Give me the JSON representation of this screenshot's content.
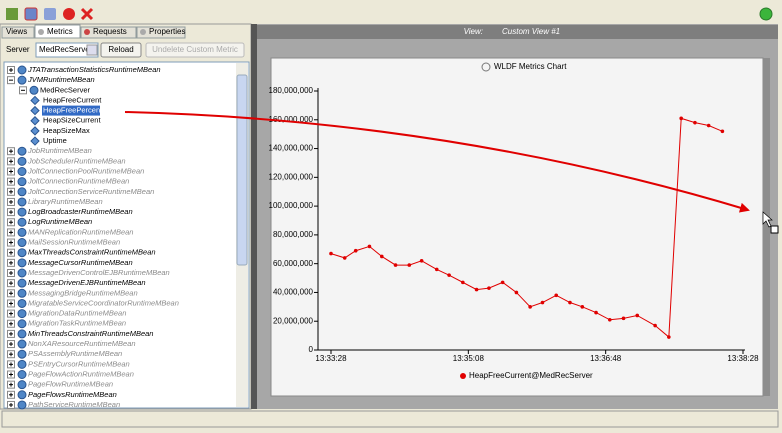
{
  "toolbar": {
    "status": "running"
  },
  "left_panel": {
    "tabs": [
      {
        "label": "Views"
      },
      {
        "label": "Metrics",
        "selected": true
      },
      {
        "label": "Requests"
      },
      {
        "label": "Properties"
      }
    ],
    "server_label": "Server",
    "server_value": "MedRecServer",
    "reload_button": "Reload",
    "undelete_button": "Undelete Custom Metric",
    "tree": [
      {
        "label": "JTATransactionStatisticsRuntimeMBean",
        "active": true
      },
      {
        "label": "JVMRuntimeMBean",
        "active": true,
        "children": [
          {
            "label": "MedRecServer",
            "children": [
              {
                "label": "HeapFreeCurrent"
              },
              {
                "label": "HeapFreePercent",
                "selected": true
              },
              {
                "label": "HeapSizeCurrent"
              },
              {
                "label": "HeapSizeMax"
              },
              {
                "label": "Uptime"
              }
            ]
          }
        ]
      },
      {
        "label": "JobRuntimeMBean",
        "active": false
      },
      {
        "label": "JobSchedulerRuntimeMBean",
        "active": false
      },
      {
        "label": "JoltConnectionPoolRuntimeMBean",
        "active": false
      },
      {
        "label": "JoltConnectionRuntimeMBean",
        "active": false
      },
      {
        "label": "JoltConnectionServiceRuntimeMBean",
        "active": false
      },
      {
        "label": "LibraryRuntimeMBean",
        "active": false
      },
      {
        "label": "LogBroadcasterRuntimeMBean",
        "active": true
      },
      {
        "label": "LogRuntimeMBean",
        "active": true
      },
      {
        "label": "MANReplicationRuntimeMBean",
        "active": false
      },
      {
        "label": "MailSessionRuntimeMBean",
        "active": false
      },
      {
        "label": "MaxThreadsConstraintRuntimeMBean",
        "active": true
      },
      {
        "label": "MessageCursorRuntimeMBean",
        "active": true
      },
      {
        "label": "MessageDrivenControlEJBRuntimeMBean",
        "active": false
      },
      {
        "label": "MessageDrivenEJBRuntimeMBean",
        "active": true
      },
      {
        "label": "MessagingBridgeRuntimeMBean",
        "active": false
      },
      {
        "label": "MigratableServiceCoordinatorRuntimeMBean",
        "active": false
      },
      {
        "label": "MigrationDataRuntimeMBean",
        "active": false
      },
      {
        "label": "MigrationTaskRuntimeMBean",
        "active": false
      },
      {
        "label": "MinThreadsConstraintRuntimeMBean",
        "active": true
      },
      {
        "label": "NonXAResourceRuntimeMBean",
        "active": false
      },
      {
        "label": "PSAssemblyRuntimeMBean",
        "active": false
      },
      {
        "label": "PSEntryCursorRuntimeMBean",
        "active": false
      },
      {
        "label": "PageFlowActionRuntimeMBean",
        "active": false
      },
      {
        "label": "PageFlowRuntimeMBean",
        "active": false
      },
      {
        "label": "PageFlowsRuntimeMBean",
        "active": true
      },
      {
        "label": "PathServiceRuntimeMBean",
        "active": false
      }
    ]
  },
  "view_header": {
    "label": "View:",
    "value": "Custom View #1"
  },
  "chart_data": {
    "type": "line",
    "title": "WLDF Metrics Chart",
    "x": [
      "13:33:28",
      "13:33:38",
      "13:33:46",
      "13:33:56",
      "13:34:05",
      "13:34:15",
      "13:34:25",
      "13:34:34",
      "13:34:45",
      "13:34:54",
      "13:35:04",
      "13:35:14",
      "13:35:23",
      "13:35:33",
      "13:35:43",
      "13:35:53",
      "13:36:02",
      "13:36:12",
      "13:36:22",
      "13:36:31",
      "13:36:41",
      "13:36:51",
      "13:37:01",
      "13:37:11",
      "13:37:24",
      "13:37:34",
      "13:37:43",
      "13:37:53",
      "13:38:03",
      "13:38:13"
    ],
    "series": [
      {
        "name": "HeapFreeCurrent@MedRecServer",
        "color": "#e00000",
        "values": [
          67000000,
          64000000,
          69000000,
          72000000,
          65000000,
          59000000,
          59000000,
          62000000,
          56000000,
          52000000,
          47000000,
          42000000,
          43000000,
          47000000,
          40000000,
          30000000,
          33000000,
          38000000,
          33000000,
          30000000,
          26000000,
          21000000,
          22000000,
          24000000,
          17000000,
          9000000,
          161000000,
          158000000,
          156000000,
          152000000
        ]
      }
    ],
    "xlim": [
      "13:33:28",
      "13:38:28"
    ],
    "xticks": [
      "13:33:28",
      "13:35:08",
      "13:36:48",
      "13:38:28"
    ],
    "ylim": [
      0,
      180000000
    ],
    "yticks": [
      0,
      {
        "value": 20000000,
        "label": "20,000,000"
      },
      {
        "value": 40000000,
        "label": "40,000,000"
      },
      {
        "value": 60000000,
        "label": "60,000,000"
      },
      {
        "value": 80000000,
        "label": "80,000,000"
      },
      {
        "value": 100000000,
        "label": "100,000,000"
      },
      {
        "value": 120000000,
        "label": "120,000,000"
      },
      {
        "value": 140000000,
        "label": "140,000,000"
      },
      {
        "value": 160000000,
        "label": "160,000,000"
      },
      {
        "value": 180000000,
        "label": "180,000,000"
      }
    ],
    "grid": false
  }
}
